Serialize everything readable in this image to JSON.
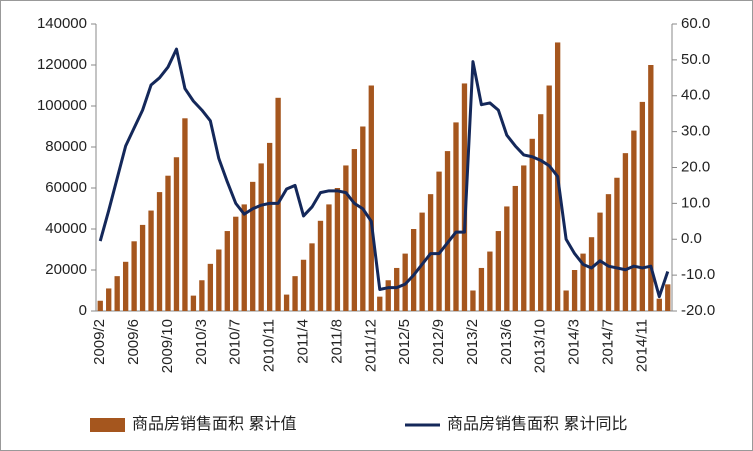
{
  "chart_data": {
    "type": "bar-line",
    "categories": [
      "2009/2",
      null,
      null,
      null,
      "2009/6",
      null,
      null,
      null,
      "2009/10",
      null,
      null,
      null,
      "2010/3",
      null,
      null,
      null,
      "2010/7",
      null,
      null,
      null,
      "2010/11",
      null,
      null,
      null,
      "2011/4",
      null,
      null,
      null,
      "2011/8",
      null,
      null,
      null,
      "2011/12",
      null,
      null,
      null,
      "2012/5",
      null,
      null,
      null,
      "2012/9",
      null,
      null,
      null,
      "2013/2",
      null,
      null,
      null,
      "2013/6",
      null,
      null,
      null,
      "2013/10",
      null,
      null,
      null,
      "2014/3",
      null,
      null,
      null,
      "2014/7",
      null,
      null,
      null,
      "2014/11",
      null,
      null,
      null
    ],
    "series": [
      {
        "name": "商品房销售面积 累计值",
        "type": "bar",
        "axis": "y",
        "color": "#a5561e",
        "values": [
          5000,
          11000,
          17000,
          24000,
          34000,
          42000,
          49000,
          58000,
          66000,
          75000,
          94000,
          7500,
          15000,
          23000,
          30000,
          39000,
          46000,
          52000,
          63000,
          72000,
          82000,
          104000,
          8000,
          17000,
          25000,
          33000,
          44000,
          52000,
          60000,
          71000,
          79000,
          90000,
          110000,
          7000,
          15000,
          21000,
          28000,
          40000,
          48000,
          57000,
          68000,
          78000,
          92000,
          111000,
          10000,
          21000,
          29000,
          39000,
          51000,
          61000,
          71000,
          84000,
          96000,
          110000,
          131000,
          10000,
          20000,
          28000,
          36000,
          48000,
          57000,
          65000,
          77000,
          88000,
          102000,
          120000,
          6000,
          13000
        ]
      },
      {
        "name": "商品房销售面积 累计同比",
        "type": "line",
        "axis": "y2",
        "color": "#14285a",
        "values": [
          -0.5,
          8,
          17,
          26,
          31,
          36,
          43,
          45,
          48,
          53,
          42,
          38.5,
          36,
          33,
          22.5,
          16,
          10,
          7,
          8.5,
          9.5,
          10,
          10,
          14,
          15,
          6.5,
          9,
          13,
          13.5,
          13.5,
          13,
          10,
          8.5,
          5,
          -14,
          -13.5,
          -13.5,
          -12.5,
          -10,
          -7,
          -4,
          -4,
          -1,
          2,
          2,
          49.5,
          37.5,
          38,
          36,
          29,
          26,
          23.5,
          23,
          22,
          20.5,
          17.5,
          0,
          -4,
          -7,
          -8,
          -6,
          -7.5,
          -8,
          -8.5,
          -7.5,
          -8,
          -7.5,
          -16,
          -9
        ]
      }
    ],
    "ylim": [
      0,
      140000
    ],
    "yticks": [
      0,
      20000,
      40000,
      60000,
      80000,
      100000,
      120000,
      140000
    ],
    "y2lim": [
      -20,
      60
    ],
    "y2ticks": [
      {
        "value": -20,
        "label": "-20.0"
      },
      {
        "value": -10,
        "label": "-10.0"
      },
      {
        "value": 0,
        "label": "0.0"
      },
      {
        "value": 10,
        "label": "10.0"
      },
      {
        "value": 20,
        "label": "20.0"
      },
      {
        "value": 30,
        "label": "30.0"
      },
      {
        "value": 40,
        "label": "40.0"
      },
      {
        "value": 50,
        "label": "50.0"
      },
      {
        "value": 60,
        "label": "60.0"
      }
    ],
    "legend": "bottom"
  }
}
